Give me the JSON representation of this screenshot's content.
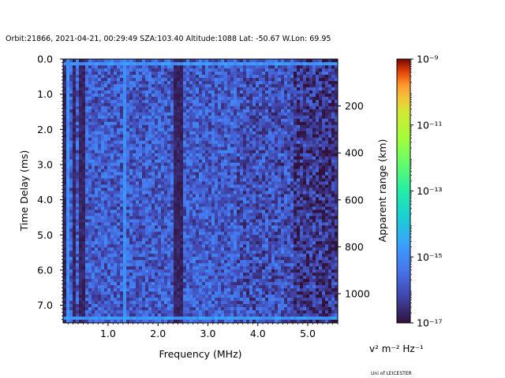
{
  "title": "Orbit:21866, 2021-04-21, 00:29:49 SZA:103.40 Altitude:1088 Lat: -50.67 W.Lon: 69.95",
  "credit": "Uni of LEICESTER",
  "chart_data": {
    "type": "heatmap",
    "title": "Orbit:21866, 2021-04-21, 00:29:49 SZA:103.40 Altitude:1088 Lat: -50.67 W.Lon: 69.95",
    "xlabel": "Frequency (MHz)",
    "ylabel": "Time Delay (ms)",
    "y2label": "Apparent range (km)",
    "xlim": [
      0.1,
      5.6
    ],
    "ylim": [
      7.5,
      0.0
    ],
    "x_ticks": [
      1.0,
      2.0,
      3.0,
      4.0,
      5.0
    ],
    "x_tick_labels": [
      "1.0",
      "2.0",
      "3.0",
      "4.0",
      "5.0"
    ],
    "y_ticks": [
      0.0,
      1.0,
      2.0,
      3.0,
      4.0,
      5.0,
      6.0,
      7.0
    ],
    "y_tick_labels": [
      "0.0",
      "1.0",
      "2.0",
      "3.0",
      "4.0",
      "5.0",
      "6.0",
      "7.0"
    ],
    "y2_ticks": [
      200,
      400,
      600,
      800,
      1000
    ],
    "y2_tick_labels": [
      "200",
      "400",
      "600",
      "800",
      "1000"
    ],
    "km_per_ms": 149.9,
    "colorbar": {
      "label": "Apparent range (km)",
      "units_label": "v² m⁻² Hz⁻¹",
      "scale": "log",
      "min": 1e-17,
      "max": 1e-09,
      "tick_exponents": [
        -9,
        -11,
        -13,
        -15,
        -17
      ],
      "tick_labels": [
        "10⁻⁹",
        "10⁻¹¹",
        "10⁻¹³",
        "10⁻¹⁵",
        "10⁻¹⁷"
      ],
      "colormap": "turbo"
    },
    "features": {
      "background_log10": -15.8,
      "bright_vertical_lines_mhz": [
        0.2,
        1.35
      ],
      "dark_vertical_bands_mhz": [
        [
          0.15,
          0.2
        ],
        [
          0.3,
          0.35
        ],
        [
          0.45,
          0.48
        ],
        [
          2.35,
          2.45
        ]
      ],
      "bright_rows_ms": [
        0.15,
        7.35
      ],
      "dark_high_freq_region_mhz": [
        4.7,
        5.6
      ]
    }
  }
}
